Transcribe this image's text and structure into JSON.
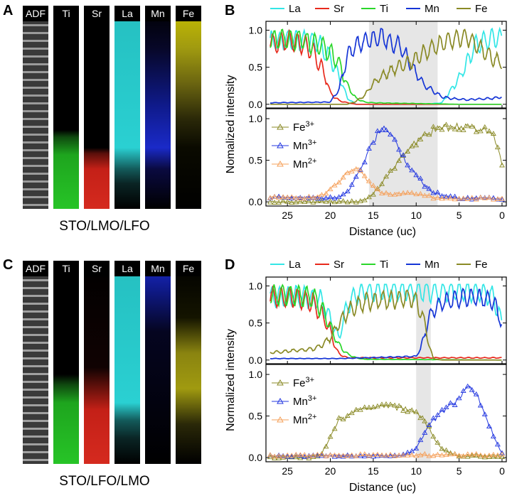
{
  "panels": {
    "A": "A",
    "B": "B",
    "C": "C",
    "D": "D"
  },
  "colors": {
    "La": "#33e6e6",
    "Sr": "#e8291c",
    "Ti": "#2ad62a",
    "Mn": "#1535d6",
    "Fe": "#8a8a26",
    "Fe3": "#8a8a26",
    "Mn3": "#2438e0",
    "Mn2": "#f5a05a",
    "band": "#e6e6e6"
  },
  "strips_top": {
    "labels": [
      "ADF",
      "Ti",
      "Sr",
      "La",
      "Mn",
      "Fe"
    ],
    "caption": "STO/LMO/LFO"
  },
  "strips_bottom": {
    "labels": [
      "ADF",
      "Ti",
      "Sr",
      "La",
      "Mn",
      "Fe"
    ],
    "caption": "STO/LFO/LMO"
  },
  "chart_data": [
    {
      "type": "line",
      "panel": "B",
      "title": "",
      "xlabel": "Distance (uc)",
      "ylabel": "Nomalized intensity",
      "xlim": [
        27.5,
        -0.5
      ],
      "xticks": [
        25,
        20,
        15,
        10,
        5,
        0
      ],
      "highlight_band": [
        15.5,
        7.5
      ],
      "top": {
        "ylim": [
          -0.05,
          1.12
        ],
        "yticks": [
          "0.0",
          "0.5",
          "1.0"
        ],
        "series": [
          {
            "name": "La",
            "key": "La",
            "x": [
              27,
              25,
              23,
              21.5,
              20,
              19,
              18,
              17,
              16,
              15,
              13,
              11,
              9,
              7,
              5,
              3,
              1,
              0
            ],
            "y": [
              0.85,
              0.87,
              0.86,
              0.83,
              0.62,
              0.38,
              0.08,
              0.0,
              0.0,
              0.0,
              0.0,
              0.0,
              0.0,
              0.02,
              0.35,
              0.82,
              0.9,
              0.88
            ]
          },
          {
            "name": "Sr",
            "key": "Sr",
            "x": [
              27,
              25,
              23,
              22,
              21,
              20.5,
              20,
              19,
              18,
              17,
              0
            ],
            "y": [
              0.82,
              0.86,
              0.8,
              0.7,
              0.5,
              0.35,
              0.15,
              0.05,
              0.02,
              0.0,
              0.0
            ]
          },
          {
            "name": "Ti",
            "key": "Ti",
            "x": [
              27,
              25,
              23,
              21,
              20,
              19,
              18,
              17,
              16,
              15,
              10,
              5,
              0
            ],
            "y": [
              0.88,
              0.88,
              0.86,
              0.78,
              0.7,
              0.55,
              0.25,
              0.08,
              0.03,
              0.02,
              0.01,
              0.0,
              0.0
            ]
          },
          {
            "name": "Mn",
            "key": "Mn",
            "x": [
              27,
              20,
              19,
              18,
              17,
              16,
              15,
              14,
              13,
              12,
              11,
              10,
              9,
              8,
              7,
              6,
              5,
              4,
              3,
              1,
              0
            ],
            "y": [
              0.02,
              0.03,
              0.2,
              0.65,
              0.8,
              0.85,
              0.88,
              0.92,
              0.82,
              0.8,
              0.62,
              0.42,
              0.25,
              0.18,
              0.1,
              0.08,
              0.07,
              0.06,
              0.07,
              0.08,
              0.1
            ]
          },
          {
            "name": "Fe",
            "key": "Fe",
            "x": [
              27,
              18,
              17,
              16,
              15,
              14,
              13,
              12,
              11,
              10,
              9,
              8,
              7,
              6,
              5,
              4,
              3,
              2,
              1,
              0
            ],
            "y": [
              0.0,
              0.0,
              0.04,
              0.12,
              0.28,
              0.38,
              0.45,
              0.5,
              0.56,
              0.62,
              0.7,
              0.78,
              0.82,
              0.86,
              0.9,
              0.9,
              0.8,
              0.72,
              0.62,
              0.55
            ]
          }
        ]
      },
      "bottom": {
        "ylim": [
          -0.05,
          1.12
        ],
        "yticks": [
          "0.0",
          "0.5",
          "1.0"
        ],
        "series": [
          {
            "name": "Fe3+",
            "key": "Fe3",
            "x": [
              27,
              20,
              17,
              16,
              15,
              14,
              13,
              12,
              11,
              10,
              9,
              8,
              7,
              6,
              5,
              4,
              3,
              2,
              1,
              0
            ],
            "y": [
              0.0,
              0.0,
              0.0,
              0.02,
              0.1,
              0.22,
              0.35,
              0.5,
              0.62,
              0.72,
              0.8,
              0.86,
              0.88,
              0.9,
              0.9,
              0.9,
              0.88,
              0.87,
              0.83,
              0.45
            ]
          },
          {
            "name": "Mn3+",
            "key": "Mn3",
            "x": [
              27,
              20,
              19,
              18,
              17,
              16,
              15,
              14,
              13,
              12,
              11,
              10,
              9,
              8,
              7,
              6,
              5,
              0
            ],
            "y": [
              0.05,
              0.05,
              0.06,
              0.12,
              0.3,
              0.5,
              0.72,
              0.9,
              0.85,
              0.62,
              0.45,
              0.32,
              0.2,
              0.12,
              0.08,
              0.06,
              0.04,
              0.04
            ]
          },
          {
            "name": "Mn2+",
            "key": "Mn2",
            "x": [
              27,
              22,
              21,
              20,
              19,
              18,
              17,
              16,
              15,
              14,
              13,
              12,
              11,
              10,
              9,
              8,
              7,
              0
            ],
            "y": [
              0.05,
              0.05,
              0.08,
              0.15,
              0.25,
              0.35,
              0.42,
              0.3,
              0.18,
              0.1,
              0.09,
              0.1,
              0.11,
              0.1,
              0.08,
              0.05,
              0.04,
              0.04
            ]
          }
        ]
      }
    },
    {
      "type": "line",
      "panel": "D",
      "title": "",
      "xlabel": "Distance (uc)",
      "ylabel": "Normalized intensity",
      "xlim": [
        27.5,
        -0.5
      ],
      "xticks": [
        25,
        20,
        15,
        10,
        5,
        0
      ],
      "highlight_band": [
        10,
        8.3
      ],
      "top": {
        "ylim": [
          -0.05,
          1.12
        ],
        "yticks": [
          "0.0",
          "0.5",
          "1.0"
        ],
        "series": [
          {
            "name": "La",
            "key": "La",
            "x": [
              27,
              25,
              23,
              21,
              20,
              19,
              18,
              17,
              16,
              14,
              12,
              10,
              8,
              6,
              4,
              2,
              1,
              0
            ],
            "y": [
              0.85,
              0.86,
              0.85,
              0.8,
              0.55,
              0.3,
              0.75,
              0.88,
              0.92,
              0.93,
              0.93,
              0.94,
              0.92,
              0.93,
              0.93,
              0.9,
              0.85,
              0.5
            ]
          },
          {
            "name": "Sr",
            "key": "Sr",
            "x": [
              27,
              24,
              22,
              21,
              20,
              19.5,
              19,
              18,
              0
            ],
            "y": [
              0.85,
              0.85,
              0.78,
              0.6,
              0.4,
              0.2,
              0.08,
              0.03,
              0.03
            ]
          },
          {
            "name": "Ti",
            "key": "Ti",
            "x": [
              27,
              24,
              22,
              21,
              20,
              19,
              18,
              17,
              16,
              0
            ],
            "y": [
              0.88,
              0.88,
              0.84,
              0.7,
              0.45,
              0.2,
              0.08,
              0.03,
              0.01,
              0.0
            ]
          },
          {
            "name": "Mn",
            "key": "Mn",
            "x": [
              27,
              19,
              10,
              9.5,
              9,
              8.5,
              8,
              7,
              6,
              5,
              4,
              3,
              2,
              1,
              0
            ],
            "y": [
              0.02,
              0.02,
              0.05,
              0.15,
              0.35,
              0.55,
              0.68,
              0.78,
              0.8,
              0.82,
              0.85,
              0.85,
              0.82,
              0.78,
              0.5
            ]
          },
          {
            "name": "Fe",
            "key": "Fe",
            "x": [
              27,
              22,
              21,
              20,
              19,
              18,
              17,
              16,
              15,
              14,
              13,
              12,
              11,
              10,
              9,
              8.5,
              8,
              7,
              0
            ],
            "y": [
              0.1,
              0.15,
              0.2,
              0.3,
              0.5,
              0.65,
              0.72,
              0.78,
              0.8,
              0.82,
              0.8,
              0.82,
              0.85,
              0.8,
              0.5,
              0.2,
              0.02,
              0.0,
              0.0
            ]
          }
        ]
      },
      "bottom": {
        "ylim": [
          -0.05,
          1.12
        ],
        "yticks": [
          "0.0",
          "0.5",
          "1.0"
        ],
        "series": [
          {
            "name": "Fe3+",
            "key": "Fe3",
            "x": [
              27,
              22,
              21,
              20,
              19,
              18,
              17,
              16,
              15,
              14,
              13,
              12,
              11,
              10,
              9,
              8,
              7,
              6,
              5,
              0
            ],
            "y": [
              0.0,
              0.0,
              0.05,
              0.25,
              0.45,
              0.5,
              0.55,
              0.58,
              0.6,
              0.62,
              0.62,
              0.6,
              0.58,
              0.55,
              0.45,
              0.25,
              0.1,
              0.05,
              0.02,
              0.0
            ]
          },
          {
            "name": "Mn3+",
            "key": "Mn3",
            "x": [
              27,
              12,
              11,
              10,
              9,
              8,
              7,
              6,
              5,
              4,
              3,
              2,
              1,
              0
            ],
            "y": [
              0.02,
              0.02,
              0.05,
              0.12,
              0.3,
              0.45,
              0.55,
              0.62,
              0.7,
              0.85,
              0.78,
              0.55,
              0.25,
              0.05
            ]
          },
          {
            "name": "Mn2+",
            "key": "Mn2",
            "x": [
              27,
              15,
              10,
              5,
              0
            ],
            "y": [
              0.02,
              0.03,
              0.03,
              0.03,
              0.03
            ]
          }
        ]
      }
    }
  ]
}
